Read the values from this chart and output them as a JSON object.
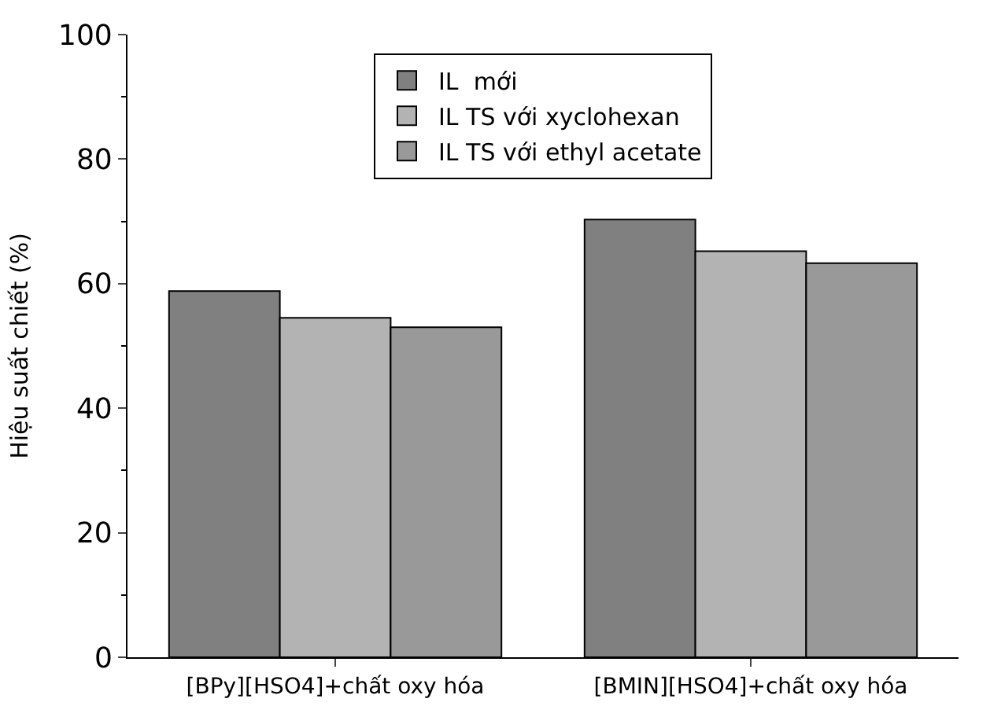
{
  "chart_data": {
    "type": "bar",
    "ylabel": "Hiệu suất chiết (%)",
    "categories": [
      "[BPy][HSO4]+chất oxy hóa",
      "[BMIN][HSO4]+chất oxy hóa"
    ],
    "series": [
      {
        "name": "IL  mới",
        "color": "#808080",
        "values": [
          58.8,
          70.3
        ]
      },
      {
        "name": "IL TS với xyclohexan",
        "color": "#b3b3b3",
        "values": [
          54.5,
          65.2
        ]
      },
      {
        "name": "IL TS với ethyl acetate",
        "color": "#999999",
        "values": [
          53.0,
          63.3
        ]
      }
    ],
    "ylim": [
      0,
      100
    ],
    "yticks": [
      0,
      20,
      40,
      60,
      80,
      100
    ],
    "legend": "top"
  }
}
